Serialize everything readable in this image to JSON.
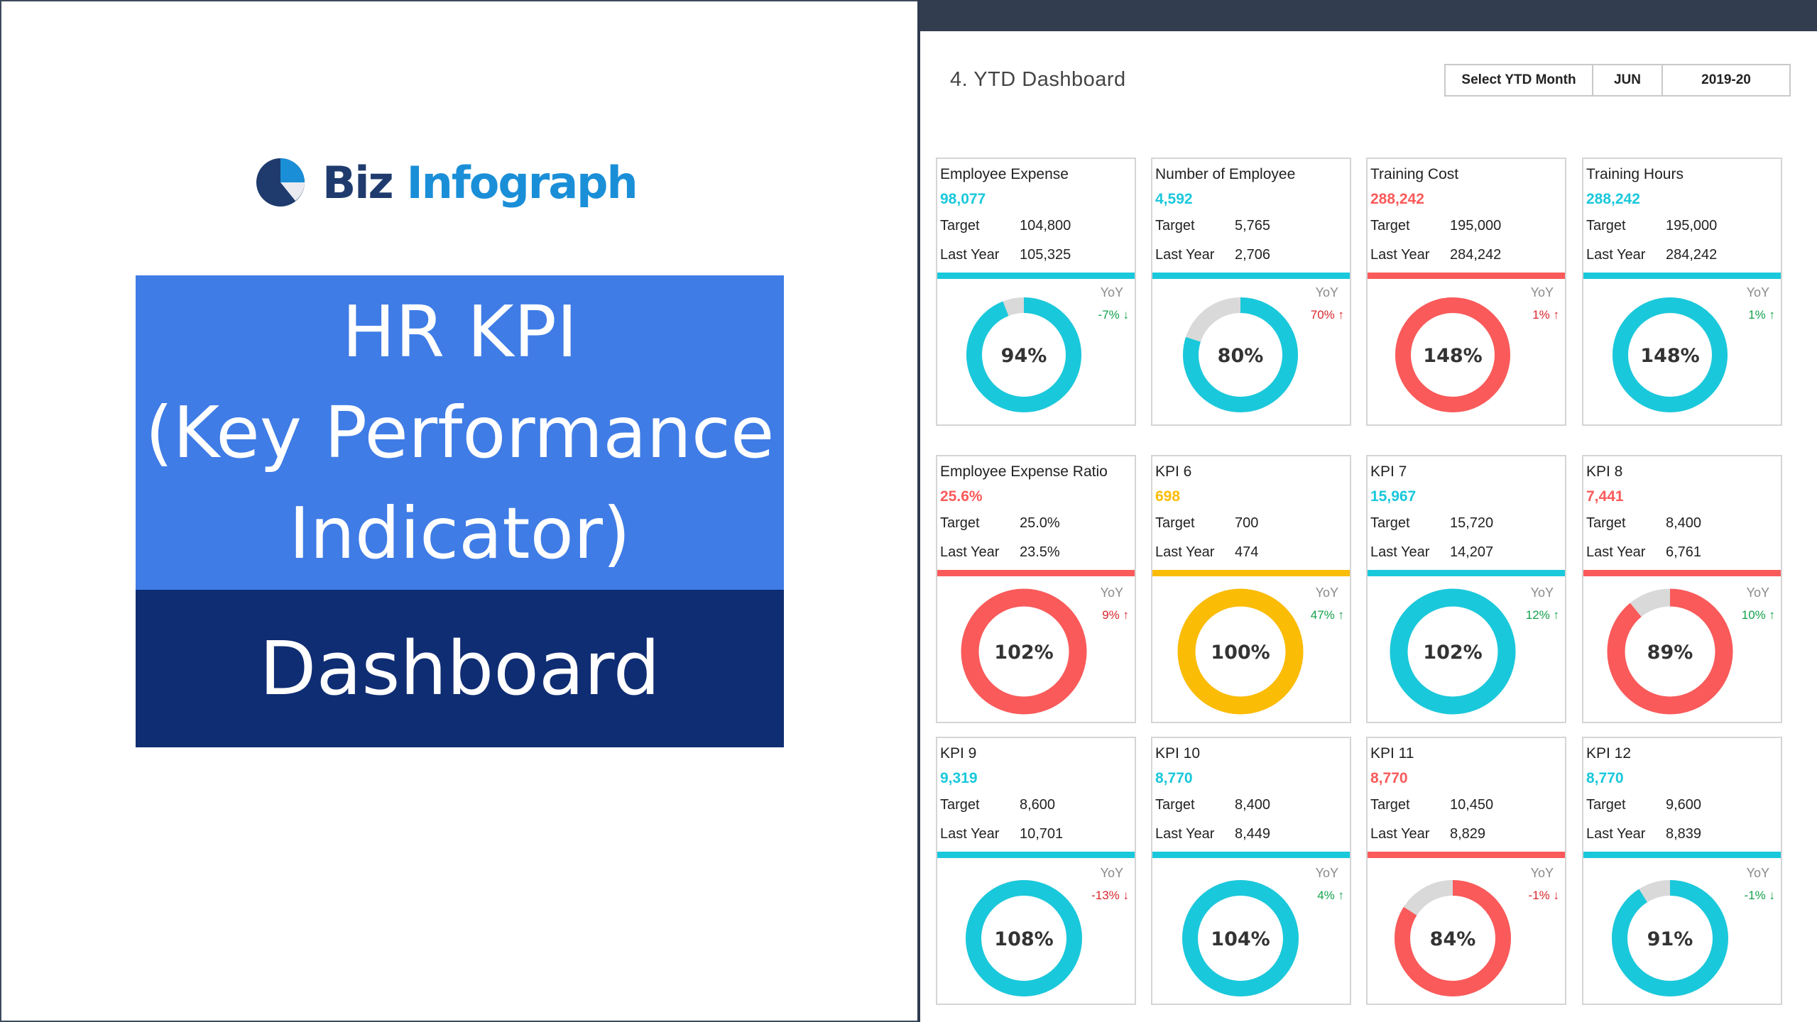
{
  "left": {
    "logo_text_a": "Biz",
    "logo_text_b": "Infograph",
    "title_lines": [
      "HR KPI",
      "(Key Performance",
      "Indicator)"
    ],
    "subtitle": "Dashboard"
  },
  "dashboard": {
    "title": "4. YTD Dashboard",
    "selector": {
      "label": "Select YTD Month",
      "month": "JUN",
      "year": "2019-20"
    },
    "labels": {
      "target": "Target",
      "last_year": "Last Year",
      "yoy": "YoY"
    }
  },
  "colors": {
    "teal": "#1ac8db",
    "red": "#fa5a5a",
    "yellow": "#fbbc05",
    "grey": "#d9d9d9",
    "yoy_green": "#13a14b",
    "yoy_red": "#d8262c"
  },
  "cards": [
    {
      "name": "Employee Expense",
      "value": "98,077",
      "target": "104,800",
      "last_year": "105,325",
      "yoy": "-7% ↓",
      "yoy_color": "green",
      "pct": 0.94,
      "pct_label": "94%",
      "color": "teal"
    },
    {
      "name": "Number of Employee",
      "value": "4,592",
      "target": "5,765",
      "last_year": "2,706",
      "yoy": "70% ↑",
      "yoy_color": "red",
      "pct": 0.8,
      "pct_label": "80%",
      "color": "teal"
    },
    {
      "name": "Training Cost",
      "value": "288,242",
      "target": "195,000",
      "last_year": "284,242",
      "yoy": "1% ↑",
      "yoy_color": "red",
      "pct": 1.48,
      "pct_label": "148%",
      "color": "red"
    },
    {
      "name": "Training Hours",
      "value": "288,242",
      "target": "195,000",
      "last_year": "284,242",
      "yoy": "1% ↑",
      "yoy_color": "green",
      "pct": 1.48,
      "pct_label": "148%",
      "color": "teal"
    },
    {
      "name": "Employee Expense Ratio",
      "value": "25.6%",
      "target": "25.0%",
      "last_year": "23.5%",
      "yoy": "9% ↑",
      "yoy_color": "red",
      "pct": 1.02,
      "pct_label": "102%",
      "color": "red"
    },
    {
      "name": "KPI 6",
      "value": "698",
      "target": "700",
      "last_year": "474",
      "yoy": "47% ↑",
      "yoy_color": "green",
      "pct": 1.0,
      "pct_label": "100%",
      "color": "yellow"
    },
    {
      "name": "KPI 7",
      "value": "15,967",
      "target": "15,720",
      "last_year": "14,207",
      "yoy": "12% ↑",
      "yoy_color": "green",
      "pct": 1.02,
      "pct_label": "102%",
      "color": "teal"
    },
    {
      "name": "KPI 8",
      "value": "7,441",
      "target": "8,400",
      "last_year": "6,761",
      "yoy": "10% ↑",
      "yoy_color": "green",
      "pct": 0.89,
      "pct_label": "89%",
      "color": "red"
    },
    {
      "name": "KPI 9",
      "value": "9,319",
      "target": "8,600",
      "last_year": "10,701",
      "yoy": "-13% ↓",
      "yoy_color": "red",
      "pct": 1.08,
      "pct_label": "108%",
      "color": "teal"
    },
    {
      "name": "KPI 10",
      "value": "8,770",
      "target": "8,400",
      "last_year": "8,449",
      "yoy": "4% ↑",
      "yoy_color": "green",
      "pct": 1.04,
      "pct_label": "104%",
      "color": "teal"
    },
    {
      "name": "KPI 11",
      "value": "8,770",
      "target": "10,450",
      "last_year": "8,829",
      "yoy": "-1% ↓",
      "yoy_color": "red",
      "pct": 0.84,
      "pct_label": "84%",
      "color": "red"
    },
    {
      "name": "KPI 12",
      "value": "8,770",
      "target": "9,600",
      "last_year": "8,839",
      "yoy": "-1% ↓",
      "yoy_color": "green",
      "pct": 0.91,
      "pct_label": "91%",
      "color": "teal"
    }
  ]
}
